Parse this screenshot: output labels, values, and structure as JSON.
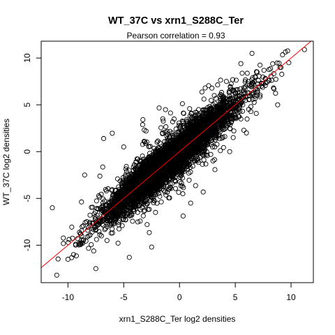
{
  "chart_data": {
    "type": "scatter",
    "title": "WT_37C vs xrn1_S288C_Ter",
    "subtitle": "Pearson correlation =  0.93",
    "xlabel": "xrn1_S288C_Ter log2 densities",
    "ylabel": "WT_37C log2 densities",
    "xlim": [
      -12.4,
      12.0
    ],
    "ylim": [
      -14.0,
      11.8
    ],
    "xticks": [
      -10,
      -5,
      0,
      5,
      10
    ],
    "xtick_labels": [
      "-10",
      "-5",
      "0",
      "5",
      "10"
    ],
    "yticks": [
      -10,
      -5,
      0,
      5,
      10
    ],
    "ytick_labels": [
      "-10",
      "-5",
      "0",
      "5",
      "10"
    ],
    "grid": false,
    "pearson_correlation": 0.93,
    "point_color": "#000000",
    "fit_line": {
      "color": "#ff0000",
      "slope": 1.0,
      "intercept": 0.0
    },
    "outliers": [
      {
        "x": 11.2,
        "y": 10.9
      },
      {
        "x": 6.5,
        "y": 10.5
      },
      {
        "x": 9.8,
        "y": 9.5
      },
      {
        "x": 9.0,
        "y": 9.0
      },
      {
        "x": -6.8,
        "y": 1.4
      },
      {
        "x": -11.4,
        "y": -6.0
      },
      {
        "x": -11.0,
        "y": -13.2
      },
      {
        "x": -9.5,
        "y": -11.0
      },
      {
        "x": -10.0,
        "y": -11.5
      },
      {
        "x": -6.5,
        "y": -9.5
      },
      {
        "x": 4.2,
        "y": 7.5
      },
      {
        "x": 2.3,
        "y": 6.8
      },
      {
        "x": 7.0,
        "y": 6.5
      },
      {
        "x": 8.8,
        "y": 5.0
      },
      {
        "x": -4.5,
        "y": -11.3
      },
      {
        "x": -2.5,
        "y": -10.2
      },
      {
        "x": -7.5,
        "y": -12.5
      },
      {
        "x": 5.5,
        "y": 9.4
      },
      {
        "x": 3.0,
        "y": -1.0
      },
      {
        "x": -1.5,
        "y": 3.5
      },
      {
        "x": -3.0,
        "y": 2.2
      },
      {
        "x": 0.3,
        "y": -4.5
      },
      {
        "x": -8.5,
        "y": -2.5
      },
      {
        "x": 1.0,
        "y": -5.5
      },
      {
        "x": -5.0,
        "y": 0.5
      },
      {
        "x": 4.5,
        "y": 0.0
      },
      {
        "x": 6.0,
        "y": 2.0
      },
      {
        "x": -9.0,
        "y": -9.8
      },
      {
        "x": 8.0,
        "y": 7.6
      },
      {
        "x": 2.0,
        "y": 3.0
      }
    ],
    "point_cloud": {
      "count": 5200,
      "x_mean": -1.5,
      "x_sd": 2.6,
      "slope": 1.0,
      "intercept": 0.0,
      "residual_sd": 1.05,
      "x_range": [
        -11.5,
        11.2
      ],
      "y_range": [
        -13.5,
        11.0
      ]
    }
  }
}
